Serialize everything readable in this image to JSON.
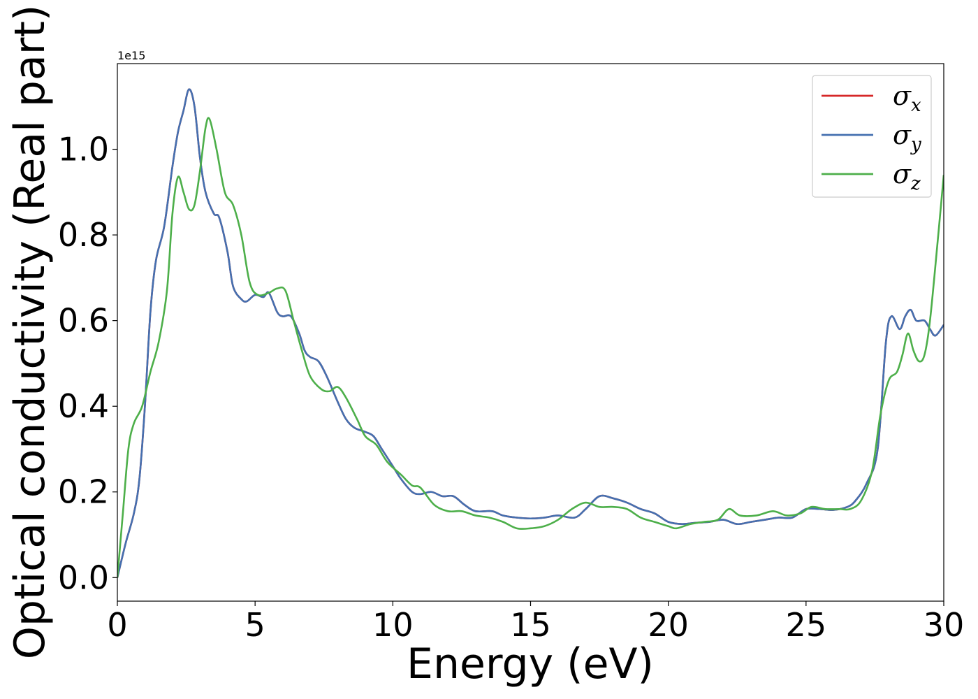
{
  "chart_data": {
    "type": "line",
    "xlabel": "Energy (eV)",
    "ylabel": "Optical conductivity (Real part)",
    "y_offset_label": "1e15",
    "xlim": [
      0,
      30
    ],
    "ylim": [
      -0.055,
      1.2
    ],
    "x_ticks": [
      0,
      5,
      10,
      15,
      20,
      25,
      30
    ],
    "x_tick_labels": [
      "0",
      "5",
      "10",
      "15",
      "20",
      "25",
      "30"
    ],
    "y_ticks": [
      0.0,
      0.2,
      0.4,
      0.6,
      0.8,
      1.0
    ],
    "y_tick_labels": [
      "0.0",
      "0.2",
      "0.4",
      "0.6",
      "0.8",
      "1.0"
    ],
    "grid": false,
    "legend_position": "top-right",
    "series": [
      {
        "name": "σx",
        "base": "σ",
        "sub": "x",
        "color": "#d62728",
        "points": [
          [
            0,
            0
          ],
          [
            0.3,
            0.08
          ],
          [
            0.6,
            0.15
          ],
          [
            0.8,
            0.23
          ],
          [
            1.0,
            0.4
          ],
          [
            1.2,
            0.62
          ],
          [
            1.4,
            0.74
          ],
          [
            1.7,
            0.82
          ],
          [
            2.0,
            0.96
          ],
          [
            2.2,
            1.04
          ],
          [
            2.4,
            1.09
          ],
          [
            2.6,
            1.14
          ],
          [
            2.8,
            1.1
          ],
          [
            3.0,
            0.98
          ],
          [
            3.2,
            0.9
          ],
          [
            3.5,
            0.85
          ],
          [
            3.7,
            0.84
          ],
          [
            4.0,
            0.76
          ],
          [
            4.2,
            0.68
          ],
          [
            4.5,
            0.65
          ],
          [
            4.7,
            0.645
          ],
          [
            5.0,
            0.66
          ],
          [
            5.3,
            0.655
          ],
          [
            5.5,
            0.665
          ],
          [
            5.8,
            0.62
          ],
          [
            6.0,
            0.61
          ],
          [
            6.3,
            0.61
          ],
          [
            6.6,
            0.57
          ],
          [
            6.8,
            0.53
          ],
          [
            7.0,
            0.515
          ],
          [
            7.3,
            0.505
          ],
          [
            7.6,
            0.47
          ],
          [
            8.0,
            0.41
          ],
          [
            8.3,
            0.37
          ],
          [
            8.6,
            0.35
          ],
          [
            9.0,
            0.34
          ],
          [
            9.3,
            0.33
          ],
          [
            9.6,
            0.3
          ],
          [
            10.0,
            0.26
          ],
          [
            10.3,
            0.23
          ],
          [
            10.7,
            0.2
          ],
          [
            11.0,
            0.195
          ],
          [
            11.4,
            0.2
          ],
          [
            11.8,
            0.19
          ],
          [
            12.2,
            0.19
          ],
          [
            12.6,
            0.17
          ],
          [
            13.0,
            0.155
          ],
          [
            13.6,
            0.155
          ],
          [
            14.0,
            0.145
          ],
          [
            14.5,
            0.14
          ],
          [
            15.0,
            0.138
          ],
          [
            15.5,
            0.14
          ],
          [
            16.0,
            0.145
          ],
          [
            16.6,
            0.14
          ],
          [
            17.0,
            0.16
          ],
          [
            17.5,
            0.19
          ],
          [
            18.0,
            0.185
          ],
          [
            18.5,
            0.175
          ],
          [
            19.0,
            0.16
          ],
          [
            19.5,
            0.15
          ],
          [
            20.0,
            0.13
          ],
          [
            20.5,
            0.125
          ],
          [
            21.0,
            0.128
          ],
          [
            21.5,
            0.13
          ],
          [
            22.0,
            0.135
          ],
          [
            22.5,
            0.125
          ],
          [
            23.0,
            0.13
          ],
          [
            23.5,
            0.135
          ],
          [
            24.0,
            0.14
          ],
          [
            24.5,
            0.14
          ],
          [
            25.0,
            0.16
          ],
          [
            25.5,
            0.16
          ],
          [
            26.0,
            0.158
          ],
          [
            26.5,
            0.165
          ],
          [
            26.8,
            0.18
          ],
          [
            27.2,
            0.22
          ],
          [
            27.6,
            0.3
          ],
          [
            27.9,
            0.55
          ],
          [
            28.1,
            0.61
          ],
          [
            28.4,
            0.58
          ],
          [
            28.6,
            0.61
          ],
          [
            28.8,
            0.625
          ],
          [
            29.0,
            0.6
          ],
          [
            29.3,
            0.6
          ],
          [
            29.5,
            0.58
          ],
          [
            29.7,
            0.565
          ],
          [
            30.0,
            0.59
          ]
        ]
      },
      {
        "name": "σy",
        "base": "σ",
        "sub": "y",
        "color": "#4470b0",
        "points": [
          [
            0,
            0
          ],
          [
            0.3,
            0.08
          ],
          [
            0.6,
            0.15
          ],
          [
            0.8,
            0.23
          ],
          [
            1.0,
            0.4
          ],
          [
            1.2,
            0.62
          ],
          [
            1.4,
            0.74
          ],
          [
            1.7,
            0.82
          ],
          [
            2.0,
            0.96
          ],
          [
            2.2,
            1.04
          ],
          [
            2.4,
            1.09
          ],
          [
            2.6,
            1.14
          ],
          [
            2.8,
            1.1
          ],
          [
            3.0,
            0.98
          ],
          [
            3.2,
            0.9
          ],
          [
            3.5,
            0.85
          ],
          [
            3.7,
            0.84
          ],
          [
            4.0,
            0.76
          ],
          [
            4.2,
            0.68
          ],
          [
            4.5,
            0.65
          ],
          [
            4.7,
            0.645
          ],
          [
            5.0,
            0.66
          ],
          [
            5.3,
            0.655
          ],
          [
            5.5,
            0.665
          ],
          [
            5.8,
            0.62
          ],
          [
            6.0,
            0.61
          ],
          [
            6.3,
            0.61
          ],
          [
            6.6,
            0.57
          ],
          [
            6.8,
            0.53
          ],
          [
            7.0,
            0.515
          ],
          [
            7.3,
            0.505
          ],
          [
            7.6,
            0.47
          ],
          [
            8.0,
            0.41
          ],
          [
            8.3,
            0.37
          ],
          [
            8.6,
            0.35
          ],
          [
            9.0,
            0.34
          ],
          [
            9.3,
            0.33
          ],
          [
            9.6,
            0.3
          ],
          [
            10.0,
            0.26
          ],
          [
            10.3,
            0.23
          ],
          [
            10.7,
            0.2
          ],
          [
            11.0,
            0.195
          ],
          [
            11.4,
            0.2
          ],
          [
            11.8,
            0.19
          ],
          [
            12.2,
            0.19
          ],
          [
            12.6,
            0.17
          ],
          [
            13.0,
            0.155
          ],
          [
            13.6,
            0.155
          ],
          [
            14.0,
            0.145
          ],
          [
            14.5,
            0.14
          ],
          [
            15.0,
            0.138
          ],
          [
            15.5,
            0.14
          ],
          [
            16.0,
            0.145
          ],
          [
            16.6,
            0.14
          ],
          [
            17.0,
            0.16
          ],
          [
            17.5,
            0.19
          ],
          [
            18.0,
            0.185
          ],
          [
            18.5,
            0.175
          ],
          [
            19.0,
            0.16
          ],
          [
            19.5,
            0.15
          ],
          [
            20.0,
            0.13
          ],
          [
            20.5,
            0.125
          ],
          [
            21.0,
            0.128
          ],
          [
            21.5,
            0.13
          ],
          [
            22.0,
            0.135
          ],
          [
            22.5,
            0.125
          ],
          [
            23.0,
            0.13
          ],
          [
            23.5,
            0.135
          ],
          [
            24.0,
            0.14
          ],
          [
            24.5,
            0.14
          ],
          [
            25.0,
            0.16
          ],
          [
            25.5,
            0.16
          ],
          [
            26.0,
            0.158
          ],
          [
            26.5,
            0.165
          ],
          [
            26.8,
            0.18
          ],
          [
            27.2,
            0.22
          ],
          [
            27.6,
            0.3
          ],
          [
            27.9,
            0.55
          ],
          [
            28.1,
            0.61
          ],
          [
            28.4,
            0.58
          ],
          [
            28.6,
            0.61
          ],
          [
            28.8,
            0.625
          ],
          [
            29.0,
            0.6
          ],
          [
            29.3,
            0.6
          ],
          [
            29.5,
            0.58
          ],
          [
            29.7,
            0.565
          ],
          [
            30.0,
            0.59
          ]
        ]
      },
      {
        "name": "σz",
        "base": "σ",
        "sub": "z",
        "color": "#4daf4a",
        "points": [
          [
            0,
            0
          ],
          [
            0.2,
            0.15
          ],
          [
            0.4,
            0.3
          ],
          [
            0.6,
            0.36
          ],
          [
            0.9,
            0.4
          ],
          [
            1.2,
            0.48
          ],
          [
            1.5,
            0.55
          ],
          [
            1.8,
            0.67
          ],
          [
            2.0,
            0.85
          ],
          [
            2.2,
            0.935
          ],
          [
            2.4,
            0.9
          ],
          [
            2.6,
            0.86
          ],
          [
            2.8,
            0.87
          ],
          [
            3.0,
            0.95
          ],
          [
            3.2,
            1.05
          ],
          [
            3.35,
            1.07
          ],
          [
            3.6,
            1.0
          ],
          [
            3.9,
            0.9
          ],
          [
            4.2,
            0.87
          ],
          [
            4.5,
            0.8
          ],
          [
            4.8,
            0.69
          ],
          [
            5.1,
            0.66
          ],
          [
            5.5,
            0.665
          ],
          [
            5.8,
            0.675
          ],
          [
            6.1,
            0.67
          ],
          [
            6.4,
            0.6
          ],
          [
            6.7,
            0.53
          ],
          [
            7.0,
            0.47
          ],
          [
            7.4,
            0.44
          ],
          [
            7.7,
            0.435
          ],
          [
            8.0,
            0.445
          ],
          [
            8.3,
            0.42
          ],
          [
            8.7,
            0.37
          ],
          [
            9.0,
            0.33
          ],
          [
            9.4,
            0.31
          ],
          [
            9.8,
            0.27
          ],
          [
            10.3,
            0.24
          ],
          [
            10.7,
            0.215
          ],
          [
            11.0,
            0.21
          ],
          [
            11.5,
            0.17
          ],
          [
            12.0,
            0.155
          ],
          [
            12.5,
            0.155
          ],
          [
            13.0,
            0.145
          ],
          [
            13.5,
            0.14
          ],
          [
            14.0,
            0.13
          ],
          [
            14.5,
            0.115
          ],
          [
            15.0,
            0.115
          ],
          [
            15.5,
            0.12
          ],
          [
            16.0,
            0.135
          ],
          [
            16.5,
            0.16
          ],
          [
            17.0,
            0.175
          ],
          [
            17.5,
            0.165
          ],
          [
            18.0,
            0.165
          ],
          [
            18.5,
            0.16
          ],
          [
            19.0,
            0.14
          ],
          [
            19.5,
            0.13
          ],
          [
            20.0,
            0.12
          ],
          [
            20.3,
            0.115
          ],
          [
            20.8,
            0.125
          ],
          [
            21.3,
            0.13
          ],
          [
            21.8,
            0.135
          ],
          [
            22.2,
            0.16
          ],
          [
            22.6,
            0.145
          ],
          [
            23.2,
            0.145
          ],
          [
            23.8,
            0.155
          ],
          [
            24.3,
            0.145
          ],
          [
            24.8,
            0.15
          ],
          [
            25.2,
            0.165
          ],
          [
            25.7,
            0.16
          ],
          [
            26.2,
            0.16
          ],
          [
            26.6,
            0.16
          ],
          [
            27.0,
            0.18
          ],
          [
            27.4,
            0.25
          ],
          [
            27.7,
            0.38
          ],
          [
            28.0,
            0.46
          ],
          [
            28.3,
            0.48
          ],
          [
            28.5,
            0.52
          ],
          [
            28.7,
            0.57
          ],
          [
            28.9,
            0.53
          ],
          [
            29.1,
            0.505
          ],
          [
            29.3,
            0.52
          ],
          [
            29.5,
            0.6
          ],
          [
            29.8,
            0.8
          ],
          [
            30.0,
            0.94
          ]
        ]
      }
    ]
  }
}
